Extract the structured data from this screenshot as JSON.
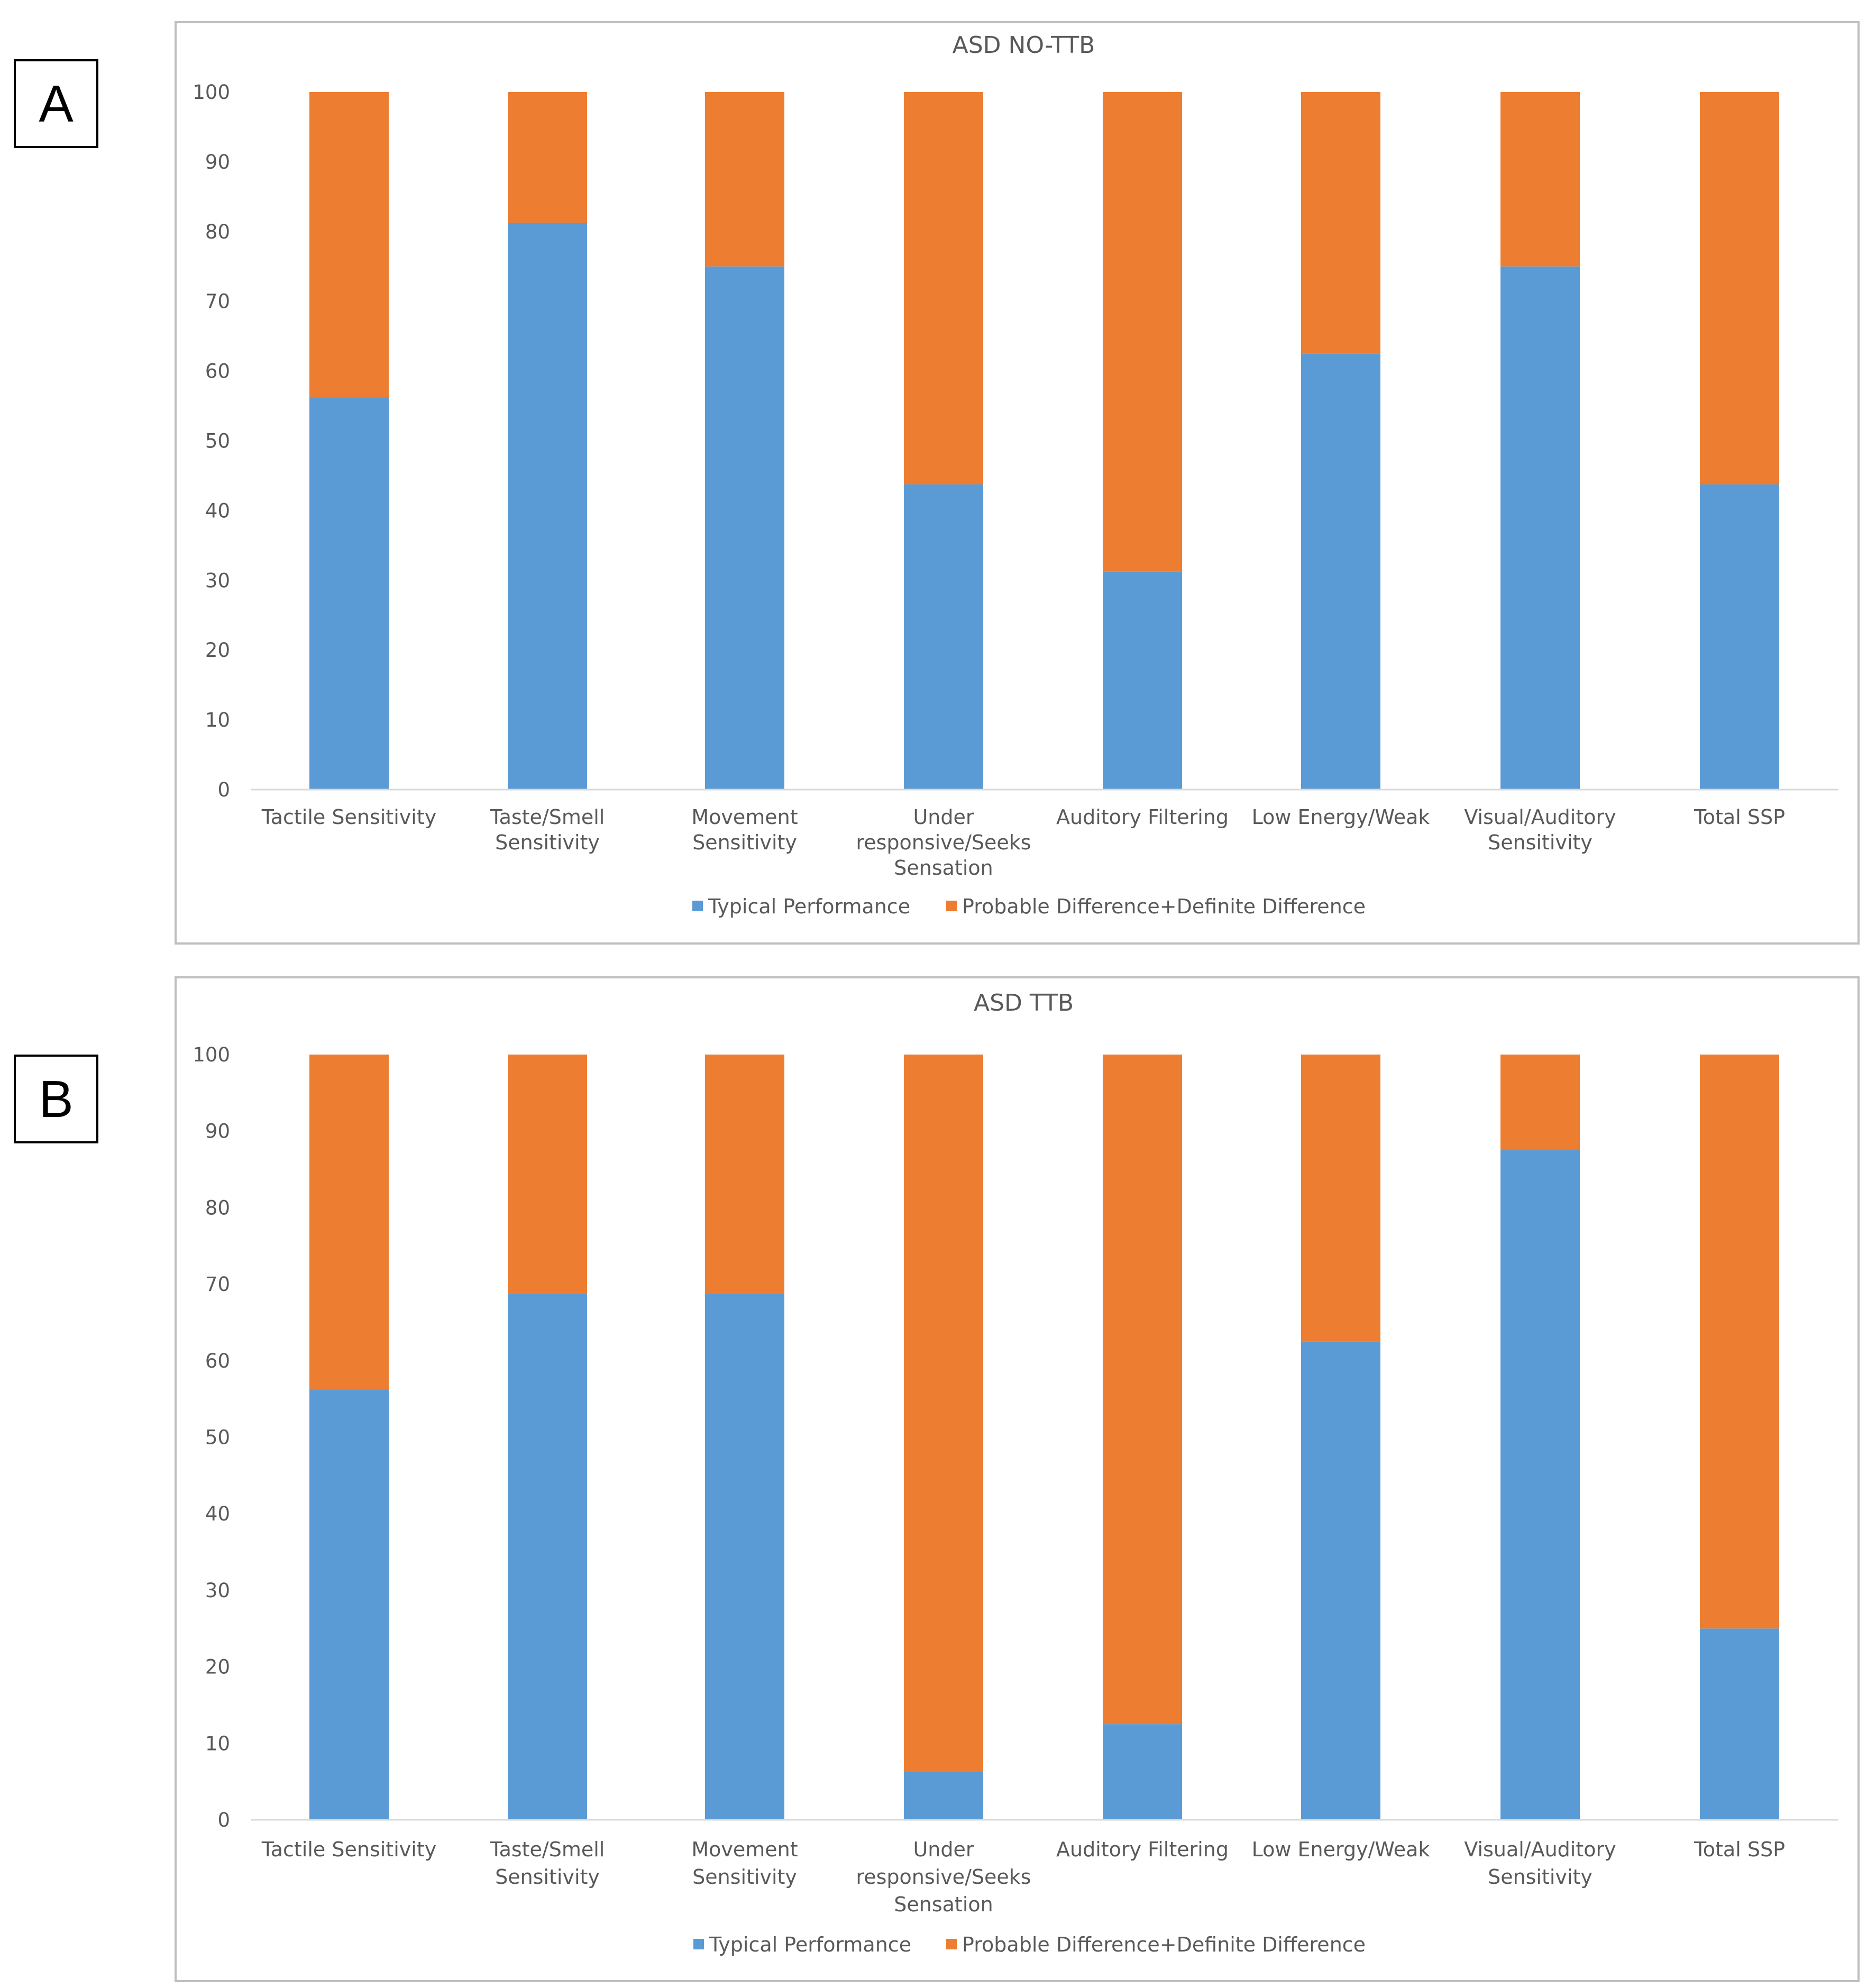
{
  "panel_labels": [
    "A",
    "B"
  ],
  "colors": {
    "typical": "#5b9bd5",
    "different": "#ed7d31",
    "axis": "#d9d9d9",
    "text": "#595959",
    "frame": "#bfbfbf"
  },
  "chart_data": [
    {
      "type": "bar",
      "stacked": true,
      "panel": "A",
      "title": "ASD NO-TTB",
      "xlabel": "",
      "ylabel": "",
      "ylim": [
        0,
        100
      ],
      "yticks": [
        0,
        10,
        20,
        30,
        40,
        50,
        60,
        70,
        80,
        90,
        100
      ],
      "grid": false,
      "legend_position": "bottom",
      "categories": [
        [
          "Tactile Sensitivity"
        ],
        [
          "Taste/Smell",
          "Sensitivity"
        ],
        [
          "Movement",
          "Sensitivity"
        ],
        [
          "Under",
          "responsive/Seeks",
          "Sensation"
        ],
        [
          "Auditory Filtering"
        ],
        [
          "Low Energy/Weak"
        ],
        [
          "Visual/Auditory",
          "Sensitivity"
        ],
        [
          "Total SSP"
        ]
      ],
      "series": [
        {
          "name": "Typical Performance",
          "color": "#5b9bd5",
          "values": [
            56.25,
            81.25,
            75,
            43.75,
            31.25,
            62.5,
            75,
            43.75
          ]
        },
        {
          "name": "Probable Difference+Definite Difference",
          "color": "#ed7d31",
          "values": [
            43.75,
            18.75,
            25,
            56.25,
            68.75,
            37.5,
            25,
            56.25
          ]
        }
      ]
    },
    {
      "type": "bar",
      "stacked": true,
      "panel": "B",
      "title": "ASD TTB",
      "xlabel": "",
      "ylabel": "",
      "ylim": [
        0,
        100
      ],
      "yticks": [
        0,
        10,
        20,
        30,
        40,
        50,
        60,
        70,
        80,
        90,
        100
      ],
      "grid": false,
      "legend_position": "bottom",
      "categories": [
        [
          "Tactile Sensitivity"
        ],
        [
          "Taste/Smell",
          "Sensitivity"
        ],
        [
          "Movement",
          "Sensitivity"
        ],
        [
          "Under",
          "responsive/Seeks",
          "Sensation"
        ],
        [
          "Auditory Filtering"
        ],
        [
          "Low Energy/Weak"
        ],
        [
          "Visual/Auditory",
          "Sensitivity"
        ],
        [
          "Total SSP"
        ]
      ],
      "series": [
        {
          "name": "Typical Performance",
          "color": "#5b9bd5",
          "values": [
            56.25,
            68.75,
            68.75,
            6.25,
            12.5,
            62.5,
            87.5,
            25
          ]
        },
        {
          "name": "Probable Difference+Definite Difference",
          "color": "#ed7d31",
          "values": [
            43.75,
            31.25,
            31.25,
            93.75,
            87.5,
            37.5,
            12.5,
            75
          ]
        }
      ]
    }
  ]
}
